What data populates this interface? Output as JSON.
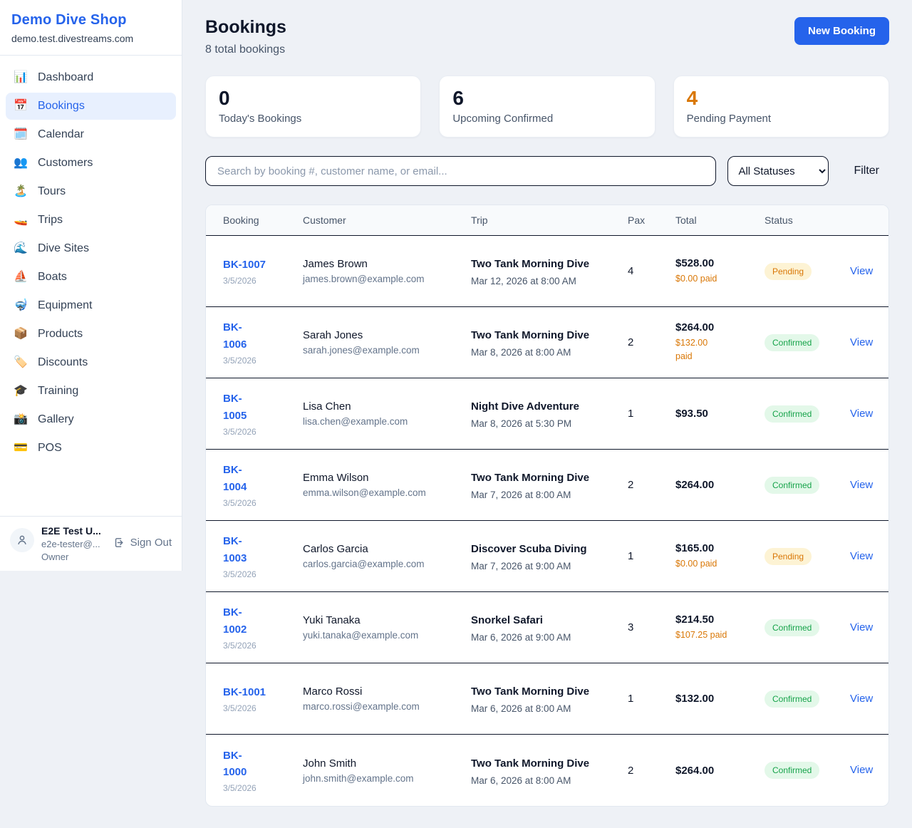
{
  "app": {
    "name": "Demo Dive Shop",
    "domain": "demo.test.divestreams.com"
  },
  "colors": {
    "accent_blue": "#2563eb",
    "pending_text": "#d97706",
    "pending_bg": "#fdf3d4",
    "confirmed_text": "#16a34a",
    "confirmed_bg": "#e3f8e9",
    "paid_orange": "#d97706"
  },
  "sidebar": {
    "items": [
      {
        "icon": "📊",
        "icon_name": "bar-chart-icon",
        "label": "Dashboard",
        "active": false
      },
      {
        "icon": "📅",
        "icon_name": "calendar-icon",
        "label": "Bookings",
        "active": true
      },
      {
        "icon": "🗓️",
        "icon_name": "spiral-calendar-icon",
        "label": "Calendar",
        "active": false
      },
      {
        "icon": "👥",
        "icon_name": "people-icon",
        "label": "Customers",
        "active": false
      },
      {
        "icon": "🏝️",
        "icon_name": "island-icon",
        "label": "Tours",
        "active": false
      },
      {
        "icon": "🚤",
        "icon_name": "speedboat-icon",
        "label": "Trips",
        "active": false
      },
      {
        "icon": "🌊",
        "icon_name": "wave-icon",
        "label": "Dive Sites",
        "active": false
      },
      {
        "icon": "⛵",
        "icon_name": "sailboat-icon",
        "label": "Boats",
        "active": false
      },
      {
        "icon": "🤿",
        "icon_name": "diving-mask-icon",
        "label": "Equipment",
        "active": false
      },
      {
        "icon": "📦",
        "icon_name": "package-icon",
        "label": "Products",
        "active": false
      },
      {
        "icon": "🏷️",
        "icon_name": "label-tag-icon",
        "label": "Discounts",
        "active": false
      },
      {
        "icon": "🎓",
        "icon_name": "graduation-cap-icon",
        "label": "Training",
        "active": false
      },
      {
        "icon": "📸",
        "icon_name": "camera-flash-icon",
        "label": "Gallery",
        "active": false
      },
      {
        "icon": "💳",
        "icon_name": "credit-card-icon",
        "label": "POS",
        "active": false
      }
    ],
    "user": {
      "name": "E2E Test U...",
      "email": "e2e-tester@...",
      "role": "Owner",
      "sign_out_label": "Sign Out"
    }
  },
  "header": {
    "title": "Bookings",
    "subtitle": "8 total bookings",
    "new_booking_label": "New Booking"
  },
  "stats": [
    {
      "value": "0",
      "label": "Today's Bookings",
      "accent": "dark"
    },
    {
      "value": "6",
      "label": "Upcoming Confirmed",
      "accent": "dark"
    },
    {
      "value": "4",
      "label": "Pending Payment",
      "accent": "orange"
    }
  ],
  "filters": {
    "search_placeholder": "Search by booking #, customer name, or email...",
    "status_selected": "All Statuses",
    "filter_label": "Filter"
  },
  "table": {
    "columns": [
      "Booking",
      "Customer",
      "Trip",
      "Pax",
      "Total",
      "Status"
    ],
    "view_label": "View",
    "rows": [
      {
        "number": "BK-1007",
        "number_wrap": false,
        "date": "3/5/2026",
        "customer": "James Brown",
        "email": "james.brown@example.com",
        "trip": "Two Tank Morning Dive",
        "trip_datetime": "Mar 12, 2026 at 8:00 AM",
        "pax": "4",
        "total": "$528.00",
        "paid": "$0.00 paid",
        "paid_wrap": false,
        "status": "Pending"
      },
      {
        "number": "BK-1006",
        "number_wrap": true,
        "date": "3/5/2026",
        "customer": "Sarah Jones",
        "email": "sarah.jones@example.com",
        "trip": "Two Tank Morning Dive",
        "trip_datetime": "Mar 8, 2026 at 8:00 AM",
        "pax": "2",
        "total": "$264.00",
        "paid": "$132.00 paid",
        "paid_wrap": true,
        "status": "Confirmed"
      },
      {
        "number": "BK-1005",
        "number_wrap": true,
        "date": "3/5/2026",
        "customer": "Lisa Chen",
        "email": "lisa.chen@example.com",
        "trip": "Night Dive Adventure",
        "trip_datetime": "Mar 8, 2026 at 5:30 PM",
        "pax": "1",
        "total": "$93.50",
        "paid": "",
        "paid_wrap": false,
        "status": "Confirmed"
      },
      {
        "number": "BK-1004",
        "number_wrap": true,
        "date": "3/5/2026",
        "customer": "Emma Wilson",
        "email": "emma.wilson@example.com",
        "trip": "Two Tank Morning Dive",
        "trip_datetime": "Mar 7, 2026 at 8:00 AM",
        "pax": "2",
        "total": "$264.00",
        "paid": "",
        "paid_wrap": false,
        "status": "Confirmed"
      },
      {
        "number": "BK-1003",
        "number_wrap": true,
        "date": "3/5/2026",
        "customer": "Carlos Garcia",
        "email": "carlos.garcia@example.com",
        "trip": "Discover Scuba Diving",
        "trip_datetime": "Mar 7, 2026 at 9:00 AM",
        "pax": "1",
        "total": "$165.00",
        "paid": "$0.00 paid",
        "paid_wrap": false,
        "status": "Pending"
      },
      {
        "number": "BK-1002",
        "number_wrap": true,
        "date": "3/5/2026",
        "customer": "Yuki Tanaka",
        "email": "yuki.tanaka@example.com",
        "trip": "Snorkel Safari",
        "trip_datetime": "Mar 6, 2026 at 9:00 AM",
        "pax": "3",
        "total": "$214.50",
        "paid": "$107.25 paid",
        "paid_wrap": false,
        "status": "Confirmed"
      },
      {
        "number": "BK-1001",
        "number_wrap": false,
        "date": "3/5/2026",
        "customer": "Marco Rossi",
        "email": "marco.rossi@example.com",
        "trip": "Two Tank Morning Dive",
        "trip_datetime": "Mar 6, 2026 at 8:00 AM",
        "pax": "1",
        "total": "$132.00",
        "paid": "",
        "paid_wrap": false,
        "status": "Confirmed"
      },
      {
        "number": "BK-1000",
        "number_wrap": true,
        "date": "3/5/2026",
        "customer": "John Smith",
        "email": "john.smith@example.com",
        "trip": "Two Tank Morning Dive",
        "trip_datetime": "Mar 6, 2026 at 8:00 AM",
        "pax": "2",
        "total": "$264.00",
        "paid": "",
        "paid_wrap": false,
        "status": "Confirmed"
      }
    ]
  }
}
